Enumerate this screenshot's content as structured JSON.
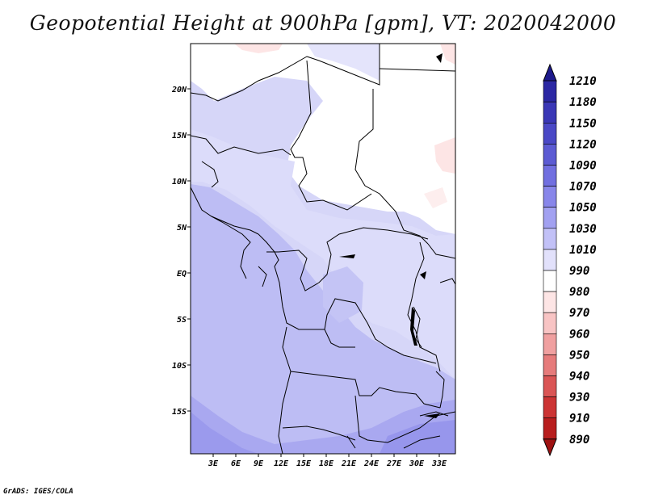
{
  "title": "Geopotential Height at 900hPa [gpm], VT: 2020042000",
  "footer": "GrADS: IGES/COLA",
  "map": {
    "lat_labels": [
      "20N",
      "15N",
      "10N",
      "5N",
      "EQ",
      "5S",
      "10S",
      "15S"
    ],
    "lon_labels": [
      "3E",
      "6E",
      "9E",
      "12E",
      "15E",
      "18E",
      "21E",
      "24E",
      "27E",
      "30E",
      "33E"
    ]
  },
  "colorbar": {
    "levels": [
      "1210",
      "1180",
      "1150",
      "1120",
      "1090",
      "1070",
      "1050",
      "1030",
      "1010",
      "990",
      "980",
      "970",
      "960",
      "950",
      "940",
      "930",
      "910",
      "890"
    ],
    "colors": [
      "#1e1a8c",
      "#2b27a3",
      "#3a37b6",
      "#4a48c6",
      "#5c5bd3",
      "#716fe0",
      "#8886ea",
      "#a2a1f1",
      "#c2c1f7",
      "#e2e1fb",
      "#ffffff",
      "#fde5e5",
      "#f8c4c4",
      "#f0a0a0",
      "#e67b7b",
      "#da5555",
      "#cc3434",
      "#b81e1e",
      "#9e1212"
    ]
  }
}
